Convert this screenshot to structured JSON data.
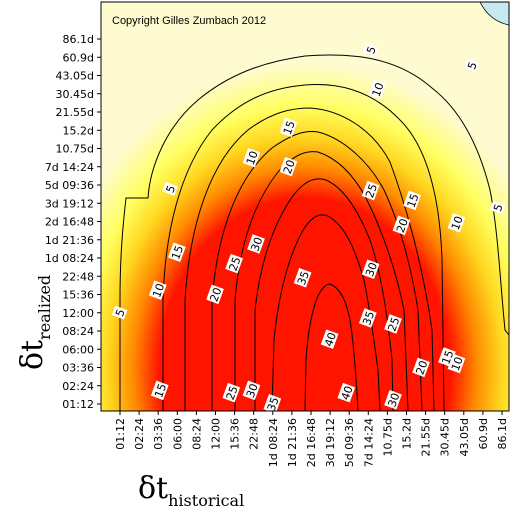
{
  "chart_data": {
    "type": "heatmap",
    "title": "",
    "copyright": "Copyright Gilles Zumbach 2012",
    "xlabel": {
      "symbol": "δt",
      "subscript": "historical"
    },
    "ylabel": {
      "symbol": "δt",
      "subscript": "realized"
    },
    "x_ticks": [
      "01:12",
      "02:24",
      "03:36",
      "06:00",
      "08:24",
      "12:00",
      "15:36",
      "22:48",
      "1d 08:24",
      "1d 21:36",
      "2d 16:48",
      "3d 19:12",
      "5d 09:36",
      "7d 14:24",
      "10.75d",
      "15.2d",
      "21.55d",
      "30.45d",
      "43.05d",
      "60.9d",
      "86.1d"
    ],
    "y_ticks": [
      "01:12",
      "02:24",
      "03:36",
      "06:00",
      "08:24",
      "12:00",
      "15:36",
      "22:48",
      "1d 08:24",
      "1d 21:36",
      "2d 16:48",
      "3d 19:12",
      "5d 09:36",
      "7d 14:24",
      "10.75d",
      "15.2d",
      "21.55d",
      "30.45d",
      "43.05d",
      "60.9d",
      "86.1d"
    ],
    "contour_levels": [
      5,
      10,
      15,
      20,
      25,
      30,
      35,
      40
    ],
    "contour_labels": [
      {
        "text": "5",
        "x": "8d",
        "y": "70d"
      },
      {
        "text": "5",
        "x": "50d",
        "y": "52d"
      },
      {
        "text": "5",
        "x": "05:00",
        "y": "5d"
      },
      {
        "text": "5",
        "x": "80d",
        "y": "3d 12:00"
      },
      {
        "text": "5",
        "x": "01:12",
        "y": "12:00"
      },
      {
        "text": "10",
        "x": "9d",
        "y": "33d"
      },
      {
        "text": "10",
        "x": "22:00",
        "y": "9d"
      },
      {
        "text": "10",
        "x": "03:36",
        "y": "17:00"
      },
      {
        "text": "10",
        "x": "38d",
        "y": "2d 15:00"
      },
      {
        "text": "10",
        "x": "38d",
        "y": "04:00"
      },
      {
        "text": "15",
        "x": "1d 19:12",
        "y": "16d"
      },
      {
        "text": "15",
        "x": "17d",
        "y": "4d"
      },
      {
        "text": "15",
        "x": "06:00",
        "y": "1d 12:00"
      },
      {
        "text": "15",
        "x": "03:48",
        "y": "02:00"
      },
      {
        "text": "15",
        "x": "32d",
        "y": "04:48"
      },
      {
        "text": "20",
        "x": "1d 19:12",
        "y": "7d 14:24"
      },
      {
        "text": "20",
        "x": "14d",
        "y": "2d 12:00"
      },
      {
        "text": "20",
        "x": "12:00",
        "y": "15:36"
      },
      {
        "text": "20",
        "x": "20d",
        "y": "03:36"
      },
      {
        "text": "25",
        "x": "8d",
        "y": "4d 20:00"
      },
      {
        "text": "25",
        "x": "12d",
        "y": "09:36"
      },
      {
        "text": "25",
        "x": "15:36",
        "y": "1d 05:00"
      },
      {
        "text": "25",
        "x": "15:00",
        "y": "01:50"
      },
      {
        "text": "30",
        "x": "1d 00:00",
        "y": "1d 18:00"
      },
      {
        "text": "30",
        "x": "8d",
        "y": "1d 02:00"
      },
      {
        "text": "30",
        "x": "22:00",
        "y": "02:00"
      },
      {
        "text": "30",
        "x": "12d",
        "y": "01:24"
      },
      {
        "text": "35",
        "x": "2d 08:00",
        "y": "22:00"
      },
      {
        "text": "35",
        "x": "7d 14:24",
        "y": "10:48"
      },
      {
        "text": "35",
        "x": "1d 08:24",
        "y": "01:12"
      },
      {
        "text": "40",
        "x": "3d 19:12",
        "y": "07:12"
      },
      {
        "text": "40",
        "x": "5d 04:00",
        "y": "01:50"
      }
    ],
    "colors": {
      "high": "#ff1400",
      "mid": "#ffa000",
      "low": "#ffff60",
      "lowest": "#fffbd0",
      "corner": "#c8e8f0"
    },
    "grid": false,
    "legend": "none"
  }
}
